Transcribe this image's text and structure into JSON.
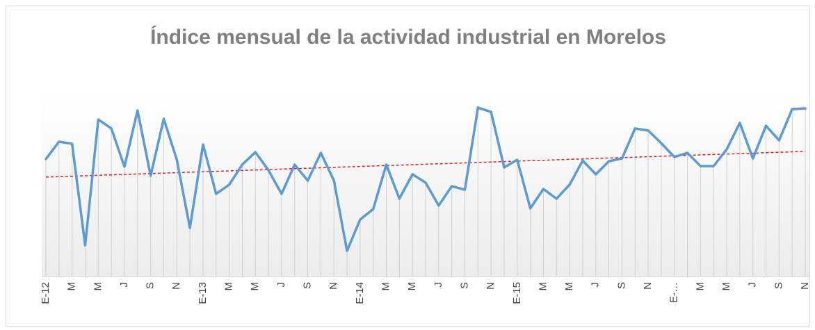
{
  "chart_data": {
    "type": "line",
    "title": "Índice mensual de la actividad industrial en Morelos",
    "categories": [
      "E-12",
      null,
      "M",
      null,
      "M",
      null,
      "J",
      null,
      "S",
      null,
      "N",
      null,
      "E-13",
      null,
      "M",
      null,
      "M",
      null,
      "J",
      null,
      "S",
      null,
      "N",
      null,
      "E-14",
      null,
      "M",
      null,
      "M",
      null,
      "J",
      null,
      "S",
      null,
      "N",
      null,
      "E-15",
      null,
      "M",
      null,
      "M",
      null,
      "J",
      null,
      "S",
      null,
      "N",
      null,
      "E-…",
      null,
      "M",
      null,
      "M",
      null,
      "J",
      null,
      "S",
      null,
      "N"
    ],
    "series": [
      {
        "color": "#5b9bd5",
        "values": [
          63.1,
          72.4,
          71.3,
          16.8,
          84.3,
          79.5,
          59.0,
          89.2,
          54.1,
          84.7,
          62.7,
          26.1,
          70.9,
          44.4,
          49.3,
          60.1,
          66.8,
          57.1,
          44.4,
          60.1,
          51.5,
          66.4,
          51.5,
          13.8,
          30.6,
          36.2,
          60.1,
          41.8,
          54.9,
          50.4,
          38.1,
          48.5,
          46.6,
          90.7,
          88.4,
          58.6,
          62.7,
          36.6,
          47.0,
          41.8,
          49.3,
          62.3,
          54.9,
          61.9,
          63.4,
          79.5,
          78.4,
          71.6,
          64.2,
          66.4,
          59.3,
          59.3,
          68.3,
          82.5,
          63.4,
          81.0,
          73.1,
          89.9,
          90.3
        ]
      }
    ],
    "trend": {
      "color": "#e31a1c",
      "start": 53.4,
      "end": 67.2
    },
    "ylim": [
      0,
      100
    ],
    "drop_lines": true
  }
}
